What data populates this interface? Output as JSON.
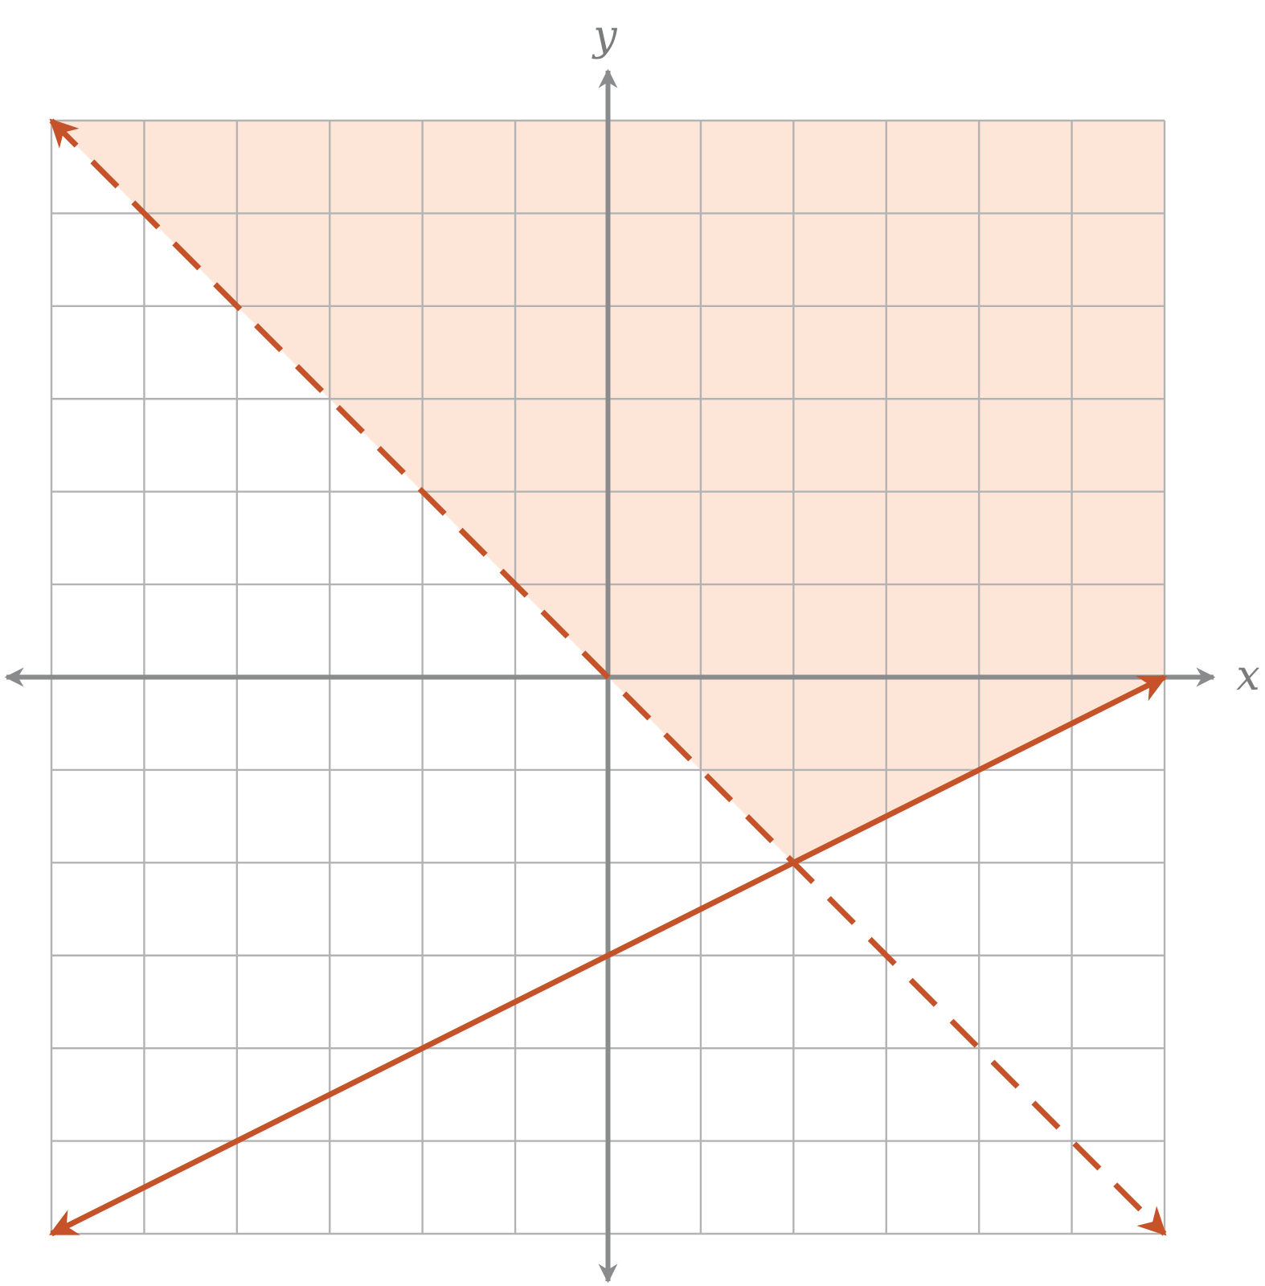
{
  "chart_data": {
    "type": "line",
    "title": "",
    "xlabel": "x",
    "ylabel": "y",
    "xlim": [
      -6,
      6
    ],
    "ylim": [
      -6,
      6
    ],
    "grid": true,
    "tick_labels_shown": false,
    "colors": {
      "line": "#c55228",
      "shade": "#fde5d8",
      "grid": "#b3b3b4",
      "axis": "#8a8b8d"
    },
    "series": [
      {
        "style": "dashed",
        "slope": -1,
        "intercept": 0,
        "points": [
          [
            -6,
            6
          ],
          [
            6,
            -6
          ]
        ]
      },
      {
        "style": "solid",
        "slope": 0.5,
        "intercept": -3,
        "points": [
          [
            -6,
            -6
          ],
          [
            6,
            0
          ]
        ]
      }
    ],
    "shaded_region": {
      "description_from_picture": "",
      "vertices": [
        [
          -6,
          6
        ],
        [
          6,
          6
        ],
        [
          6,
          0
        ],
        [
          2,
          -2
        ]
      ]
    }
  }
}
